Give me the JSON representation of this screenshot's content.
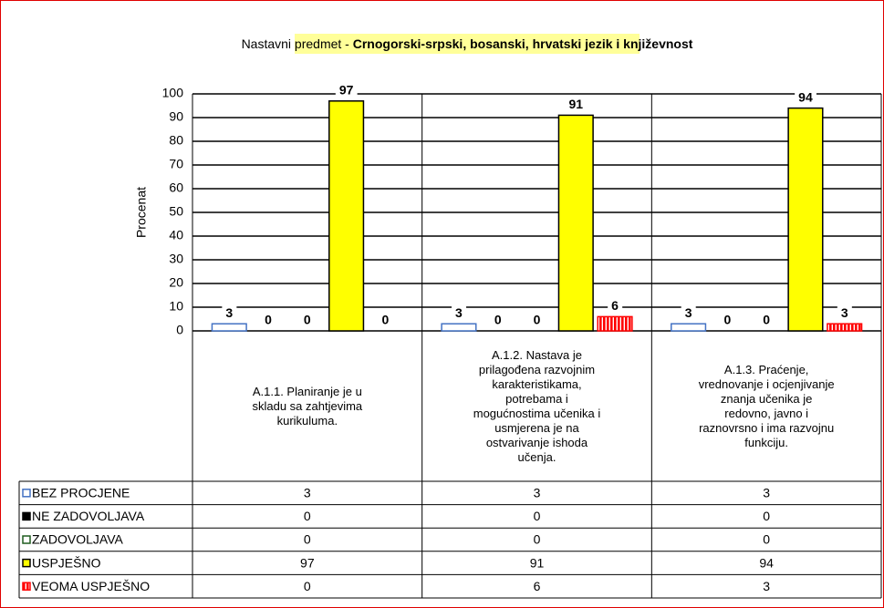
{
  "chart_data": {
    "type": "bar",
    "title": [
      "Nastavni predmet - ",
      "Crnogorski-srpski, bosanski, hrvatski jezik i književnost"
    ],
    "y_label": "Procenat",
    "categories": [
      "A.1.1. Planiranje je u skladu sa zahtjevima kurikuluma.",
      "A.1.2. Nastava je prilagođena razvojnim karakteristikama, potrebama i mogućnostima učenika i usmjerena je na ostvarivanje ishoda učenja.",
      "A.1.3. Praćenje, vrednovanje i ocjenjivanje znanja učenika je redovno, javno i raznovrsno i ima razvojnu funkciju."
    ],
    "series": [
      {
        "name": "BEZ PROCJENE",
        "color": "#4472c4",
        "fill": "#ffffff",
        "values": [
          3,
          3,
          3
        ]
      },
      {
        "name": "NE ZADOVOLJAVA",
        "color": "#000000",
        "fill": "#000000",
        "values": [
          0,
          0,
          0
        ]
      },
      {
        "name": "ZADOVOLJAVA",
        "color": "#1f5c1f",
        "fill": "#ffffff",
        "values": [
          0,
          0,
          0
        ]
      },
      {
        "name": "USPJEŠNO",
        "color": "#000000",
        "fill": "#ffff00",
        "values": [
          97,
          91,
          94
        ]
      },
      {
        "name": "VEOMA USPJEŠNO",
        "color": "#ff0000",
        "fill": "stripes",
        "values": [
          0,
          6,
          3
        ]
      }
    ],
    "ylim": [
      0,
      100
    ],
    "yticks": [
      0,
      10,
      20,
      30,
      40,
      50,
      60,
      70,
      80,
      90,
      100
    ],
    "grid": true
  }
}
